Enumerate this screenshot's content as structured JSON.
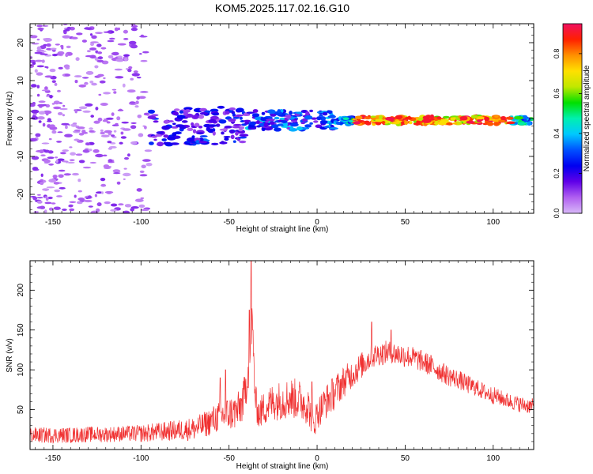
{
  "figure": {
    "title": "KOM5.2025.117.02.16.G10"
  },
  "chart_data": [
    {
      "type": "heatmap",
      "xlabel": "Height of straight line (km)",
      "ylabel": "Frequency (Hz)",
      "xlim": [
        -163,
        123
      ],
      "ylim": [
        -25,
        25
      ],
      "xticks": [
        -150,
        -100,
        -50,
        0,
        50,
        100
      ],
      "yticks": [
        -20,
        -10,
        0,
        10,
        20
      ],
      "grid": false,
      "colorbar": {
        "label": "Normalized spectral amplitude",
        "range": [
          0,
          0.95
        ],
        "ticks": [
          0.0,
          0.2,
          0.4,
          0.6,
          0.8
        ],
        "colormap": [
          "#d8b8f8",
          "#b060f0",
          "#6000e8",
          "#0000f0",
          "#0050ff",
          "#00c8ff",
          "#00f0b0",
          "#00e000",
          "#c0e800",
          "#ffe000",
          "#ff9000",
          "#ff2000",
          "#f01060"
        ]
      },
      "features": [
        {
          "x": [
            -163,
            -100
          ],
          "freq": [
            -25,
            25
          ],
          "amplitude": 0.05,
          "pattern": "scattered noise"
        },
        {
          "x": [
            -95,
            -40
          ],
          "freq": [
            -7,
            3
          ],
          "amplitude": 0.25
        },
        {
          "x": [
            -72,
            -63
          ],
          "freq": [
            -6.5,
            -5.5
          ],
          "amplitude": 0.3
        },
        {
          "x": [
            -40,
            10
          ],
          "freq": [
            -3,
            2
          ],
          "amplitude": 0.35
        },
        {
          "x": [
            10,
            123
          ],
          "freq": [
            -1.5,
            0.5
          ],
          "amplitude": 0.8,
          "peak_x": [
            20,
            110
          ]
        }
      ]
    },
    {
      "type": "line",
      "xlabel": "Height of straight line (km)",
      "ylabel": "SNR (v/v)",
      "xlim": [
        -163,
        123
      ],
      "ylim": [
        0,
        237
      ],
      "xticks": [
        -150,
        -100,
        -50,
        0,
        50,
        100
      ],
      "yticks": [
        50,
        100,
        150,
        200
      ],
      "grid": false,
      "series": [
        {
          "color": "#f03030",
          "x": [
            -163,
            -150,
            -140,
            -130,
            -120,
            -110,
            -100,
            -90,
            -80,
            -70,
            -65,
            -60,
            -55,
            -50,
            -45,
            -42,
            -40,
            -38,
            -37,
            -36,
            -35,
            -33,
            -30,
            -25,
            -20,
            -15,
            -10,
            -5,
            -2,
            0,
            5,
            10,
            15,
            20,
            25,
            30,
            35,
            40,
            45,
            50,
            55,
            60,
            65,
            70,
            75,
            80,
            85,
            90,
            95,
            100,
            105,
            110,
            115,
            120,
            123
          ],
          "mean": [
            18,
            18,
            18,
            19,
            19,
            20,
            20,
            22,
            24,
            26,
            30,
            36,
            42,
            45,
            48,
            60,
            85,
            120,
            160,
            110,
            60,
            45,
            52,
            60,
            62,
            65,
            62,
            55,
            30,
            45,
            60,
            72,
            85,
            95,
            105,
            115,
            120,
            122,
            120,
            118,
            115,
            110,
            105,
            98,
            92,
            88,
            82,
            78,
            72,
            68,
            64,
            60,
            57,
            55,
            54
          ],
          "amplitude": [
            10,
            10,
            10,
            10,
            10,
            10,
            11,
            12,
            13,
            15,
            16,
            18,
            20,
            22,
            24,
            25,
            26,
            28,
            30,
            28,
            22,
            20,
            22,
            24,
            25,
            26,
            26,
            24,
            18,
            20,
            22,
            22,
            20,
            18,
            17,
            16,
            15,
            15,
            15,
            15,
            14,
            14,
            14,
            13,
            13,
            12,
            12,
            11,
            11,
            11,
            10,
            10,
            10,
            10,
            10
          ],
          "peaks": [
            {
              "x": -37.5,
              "y": 237
            },
            {
              "x": -38.5,
              "y": 175
            },
            {
              "x": -36.5,
              "y": 150
            },
            {
              "x": -52,
              "y": 100
            },
            {
              "x": -55,
              "y": 90
            },
            {
              "x": -3,
              "y": 85
            },
            {
              "x": 31,
              "y": 160
            },
            {
              "x": 42,
              "y": 150
            }
          ]
        }
      ]
    }
  ]
}
